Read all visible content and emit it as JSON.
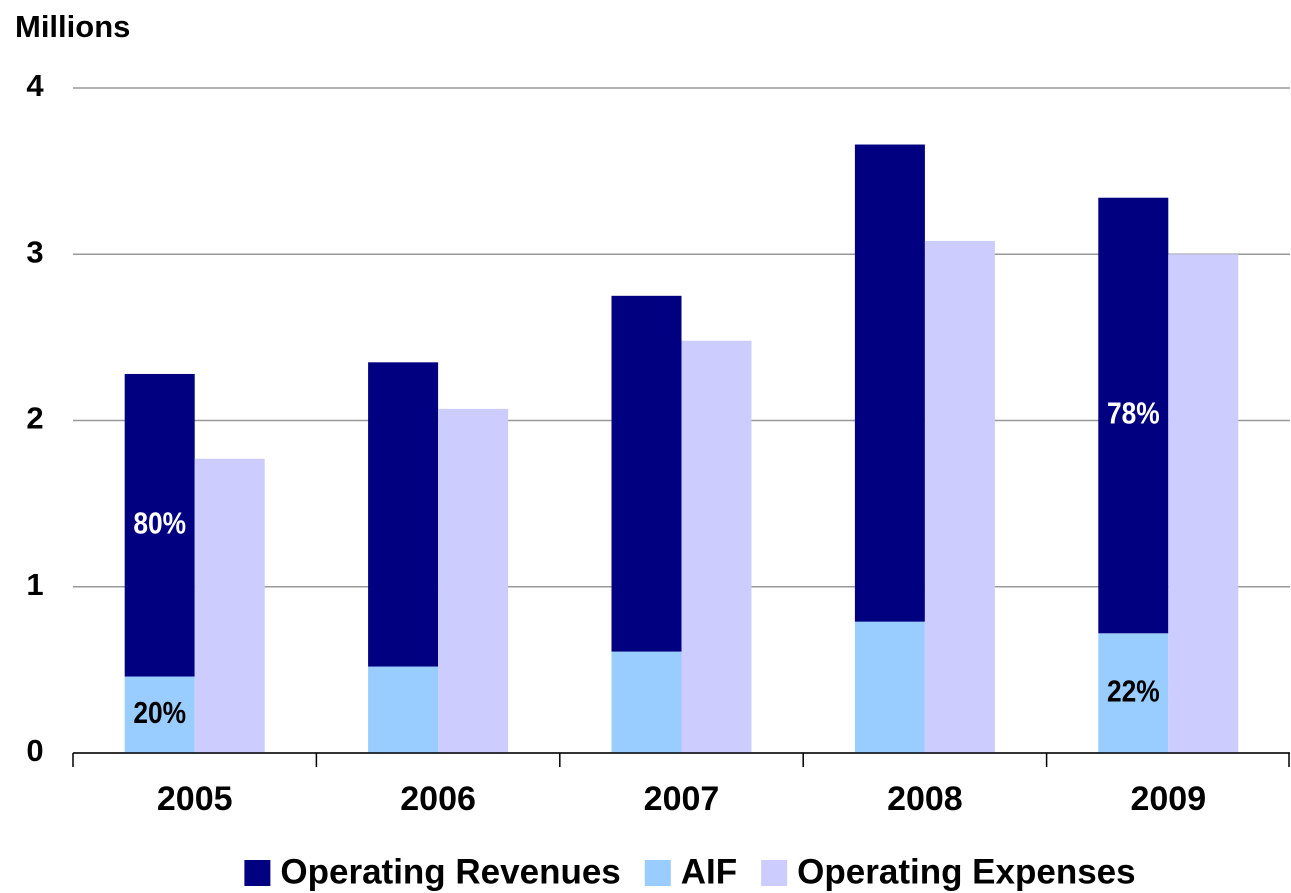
{
  "chart_data": {
    "type": "bar",
    "y_axis_label": "Millions",
    "categories": [
      "2005",
      "2006",
      "2007",
      "2008",
      "2009"
    ],
    "series": [
      {
        "name": "Operating Revenues",
        "color": "#000080",
        "stacked": true,
        "values": [
          1.82,
          1.83,
          2.14,
          2.87,
          2.62
        ],
        "percent_labels": [
          "80%",
          null,
          null,
          null,
          "78%"
        ]
      },
      {
        "name": "AIF",
        "color": "#99ccff",
        "stacked": true,
        "values": [
          0.46,
          0.52,
          0.61,
          0.79,
          0.72
        ],
        "percent_labels": [
          "20%",
          null,
          null,
          null,
          "22%"
        ]
      },
      {
        "name": "Operating Expenses",
        "color": "#ccccff",
        "values": [
          1.77,
          2.07,
          2.48,
          3.08,
          3.0
        ]
      }
    ],
    "ylim": [
      0,
      4
    ],
    "yticks": [
      0,
      1,
      2,
      3,
      4
    ],
    "grid": true,
    "legend": "bottom"
  }
}
